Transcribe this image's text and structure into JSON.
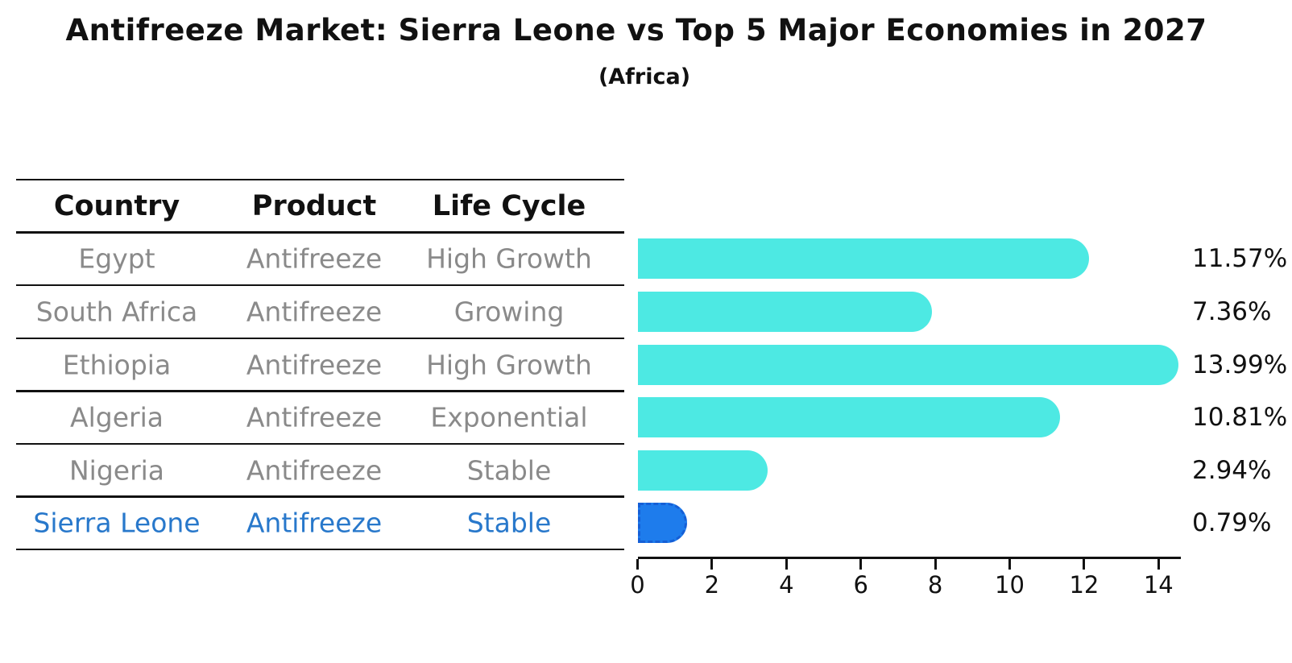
{
  "header": {
    "title": "Antifreeze Market: Sierra Leone vs Top 5 Major Economies in 2027",
    "subtitle": "(Africa)"
  },
  "table": {
    "headers": [
      "Country",
      "Product",
      "Life Cycle"
    ],
    "rows": [
      [
        "Egypt",
        "Antifreeze",
        "High Growth"
      ],
      [
        "South Africa",
        "Antifreeze",
        "Growing"
      ],
      [
        "Ethiopia",
        "Antifreeze",
        "High Growth"
      ],
      [
        "Algeria",
        "Antifreeze",
        "Exponential"
      ],
      [
        "Nigeria",
        "Antifreeze",
        "Stable"
      ],
      [
        "Sierra Leone",
        "Antifreeze",
        "Stable"
      ]
    ],
    "highlight_row_index": 5,
    "text_color": "#8a8a8a",
    "highlight_text_color": "#2878CB"
  },
  "chart_data": {
    "type": "bar",
    "orientation": "horizontal",
    "title": "Antifreeze Market: Sierra Leone vs Top 5 Major Economies in 2027",
    "subtitle": "(Africa)",
    "categories": [
      "Egypt",
      "South Africa",
      "Ethiopia",
      "Algeria",
      "Nigeria",
      "Sierra Leone"
    ],
    "values": [
      11.57,
      7.36,
      13.99,
      10.81,
      2.94,
      0.79
    ],
    "value_labels": [
      "11.57%",
      "7.36%",
      "13.99%",
      "10.81%",
      "2.94%",
      "0.79%"
    ],
    "xlabel": "",
    "ylabel": "",
    "xlim": [
      0,
      14.65
    ],
    "x_ticks": [
      0,
      2,
      4,
      6,
      8,
      10,
      12,
      14
    ],
    "grid": false,
    "legend": false,
    "bar_color": "#4DE9E3",
    "highlight_bar_color": "#1E7CEC",
    "highlight_bar_edge_color": "#155FD6",
    "highlight_index": 5
  }
}
